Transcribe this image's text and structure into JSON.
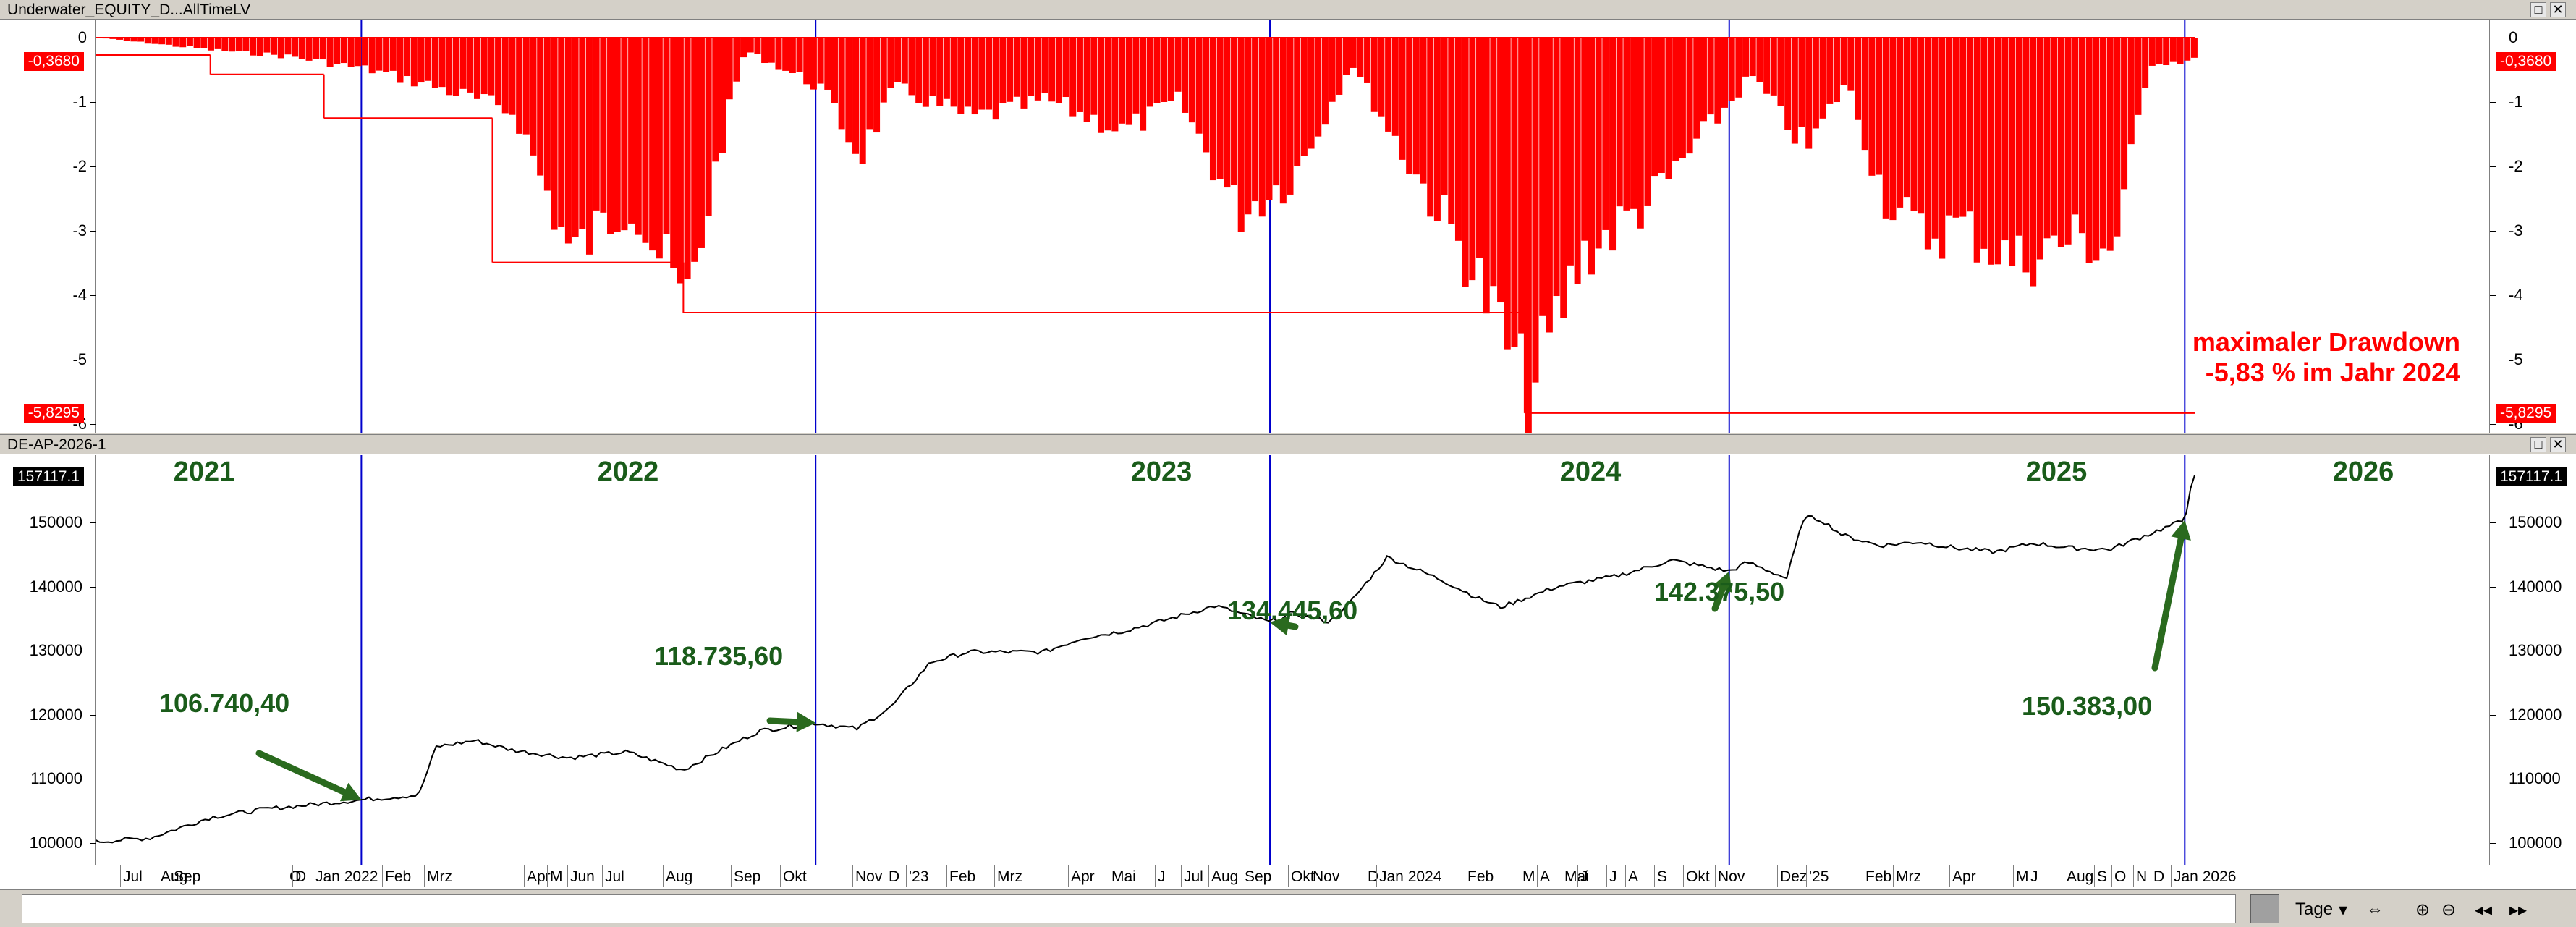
{
  "panel1": {
    "title": "Underwater_EQUITY_D...AllTimeLV",
    "current_tag": "-0,3680",
    "min_tag": "-5,8295",
    "y_ticks": [
      "0",
      "-1",
      "-2",
      "-3",
      "-4",
      "-5",
      "-6"
    ],
    "annotation_line1": "maximaler Drawdown",
    "annotation_line2": "-5,83 % im Jahr 2024"
  },
  "panel2": {
    "title": "DE-AP-2026-1",
    "current_tag": "157117.1",
    "y_ticks": [
      "150000",
      "140000",
      "130000",
      "120000",
      "110000",
      "100000"
    ],
    "years": [
      "2021",
      "2022",
      "2023",
      "2024",
      "2025",
      "2026"
    ],
    "annotations": [
      "106.740,40",
      "118.735,60",
      "134.445,60",
      "142.375,50",
      "150.383,00"
    ]
  },
  "time_axis": {
    "labels": [
      "Jul",
      "Aug",
      "Sep",
      "O",
      "D",
      "Jan 2022",
      "Feb",
      "Mrz",
      "Apr",
      "M",
      "Jun",
      "Jul",
      "Aug",
      "Sep",
      "Okt",
      "Nov",
      "D",
      "'23",
      "Feb",
      "Mrz",
      "Apr",
      "Mai",
      "J",
      "Jul",
      "Aug",
      "Sep",
      "Okt",
      "Nov",
      "D",
      "Jan 2024",
      "Feb",
      "M",
      "A",
      "Mai",
      "J",
      "J",
      "A",
      "S",
      "Okt",
      "Nov",
      "Dez",
      "'25",
      "Feb",
      "Mrz",
      "Apr",
      "M",
      "J",
      "Aug",
      "S",
      "O",
      "N",
      "D",
      "Jan 2026"
    ]
  },
  "statusbar": {
    "interval": "Tage",
    "buttons": [
      "⇔",
      "⊕",
      "⊖",
      "◂◂",
      "▸▸"
    ]
  },
  "colors": {
    "drawdown": "#ff0000",
    "equity": "#000000",
    "separator": "#0000cc",
    "text_green": "#1a5c1a",
    "arrow": "#2a6a1e"
  },
  "chart_data": [
    {
      "type": "bar",
      "title": "",
      "ylabel": "",
      "xlabel": "",
      "ylim": [
        -6,
        0.3
      ],
      "yticks": [
        0,
        -1,
        -2,
        -3,
        -4,
        -5,
        -6
      ],
      "series": [
        {
          "x": [
            "2021-06-01",
            "2021-09-01",
            "2021-11-01",
            "2022-01-01",
            "2022-03-01",
            "2022-05-01",
            "2022-06-15",
            "2022-08-01",
            "2022-09-15",
            "2022-10-15",
            "2022-11-01",
            "2023-01-01",
            "2023-02-01",
            "2023-03-01",
            "2023-05-01",
            "2023-07-01",
            "2023-09-01",
            "2023-10-15",
            "2023-12-01",
            "2024-01-15",
            "2024-03-01",
            "2024-04-01",
            "2024-05-01",
            "2024-06-01",
            "2024-07-01",
            "2024-07-20",
            "2024-09-01",
            "2024-11-01",
            "2025-01-15",
            "2025-03-01",
            "2025-04-01",
            "2025-05-01",
            "2025-06-01",
            "2025-07-01",
            "2025-08-15",
            "2025-10-01",
            "2025-11-01",
            "2025-12-01",
            "2026-01-05"
          ],
          "values": [
            0,
            -0.2,
            -0.3,
            -0.5,
            -0.8,
            -1.2,
            -3.5,
            -2.6,
            -4.3,
            -1.5,
            -0.2,
            -0.8,
            -1.9,
            -0.8,
            -1.3,
            -1.0,
            -1.5,
            -1.0,
            -2.8,
            -2.2,
            -0.4,
            -1.5,
            -2.5,
            -3.5,
            -4.8,
            -5.83,
            -3.5,
            -2.5,
            -0.6,
            -1.8,
            -0.7,
            -2.5,
            -3.2,
            -3.0,
            -3.6,
            -3.2,
            -3.4,
            -0.4,
            -0.37
          ]
        }
      ],
      "max_drawdown_line": [
        {
          "from": "2021-06-01",
          "to": "2021-09-01",
          "value": -0.27
        },
        {
          "from": "2021-09-01",
          "to": "2021-12-01",
          "value": -0.57
        },
        {
          "from": "2021-12-01",
          "to": "2022-04-15",
          "value": -1.25
        },
        {
          "from": "2022-04-15",
          "to": "2022-09-15",
          "value": -3.49
        },
        {
          "from": "2022-09-15",
          "to": "2024-07-20",
          "value": -4.27
        },
        {
          "from": "2024-07-20",
          "to": "2026-01-08",
          "value": -5.83
        }
      ]
    },
    {
      "type": "line",
      "title": "",
      "ylabel": "",
      "xlabel": "",
      "ylim": [
        96500,
        160500
      ],
      "yticks": [
        150000,
        140000,
        130000,
        120000,
        110000,
        100000
      ],
      "series": [
        {
          "x": [
            "2021-06-01",
            "2021-07-15",
            "2021-09-01",
            "2021-10-15",
            "2021-12-31",
            "2022-02-15",
            "2022-03-01",
            "2022-04-01",
            "2022-05-01",
            "2022-06-15",
            "2022-08-01",
            "2022-09-15",
            "2022-10-15",
            "2022-11-15",
            "2022-12-30",
            "2023-02-01",
            "2023-03-01",
            "2023-04-01",
            "2023-05-01",
            "2023-07-01",
            "2023-08-01",
            "2023-09-01",
            "2023-10-01",
            "2023-11-15",
            "2023-12-29",
            "2024-01-15",
            "2024-02-15",
            "2024-03-01",
            "2024-04-01",
            "2024-05-15",
            "2024-06-15",
            "2024-07-01",
            "2024-08-15",
            "2024-10-01",
            "2024-11-15",
            "2024-12-31",
            "2025-01-15",
            "2025-02-15",
            "2025-03-01",
            "2025-03-15",
            "2025-04-01",
            "2025-05-01",
            "2025-06-01",
            "2025-07-01",
            "2025-08-01",
            "2025-09-01",
            "2025-10-01",
            "2025-11-01",
            "2025-12-31",
            "2026-01-05",
            "2026-01-08"
          ],
          "values": [
            100200,
            100800,
            104000,
            105300,
            106740,
            107500,
            115000,
            116000,
            114500,
            113300,
            114200,
            111400,
            114500,
            117500,
            118736,
            117800,
            121300,
            128200,
            129800,
            129800,
            132000,
            133000,
            134500,
            137000,
            134446,
            135800,
            134500,
            137200,
            144600,
            141000,
            138000,
            136800,
            140000,
            141600,
            144100,
            142376,
            143800,
            141300,
            150900,
            150400,
            148000,
            146400,
            147000,
            146000,
            145400,
            146800,
            146000,
            145800,
            150383,
            156000,
            157117
          ]
        }
      ],
      "annotations": [
        {
          "label": "106.740,40",
          "x": "2021-12-31",
          "y": 106740
        },
        {
          "label": "118.735,60",
          "x": "2022-12-30",
          "y": 118736
        },
        {
          "label": "134.445,60",
          "x": "2023-12-29",
          "y": 134446
        },
        {
          "label": "142.375,50",
          "x": "2024-12-31",
          "y": 142376
        },
        {
          "label": "150.383,00",
          "x": "2025-12-31",
          "y": 150383
        }
      ]
    }
  ]
}
